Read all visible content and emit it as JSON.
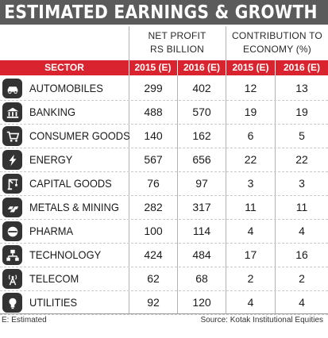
{
  "title": "ESTIMATED EARNINGS & GROWTH",
  "group_headers": {
    "net_profit": [
      "NET PROFIT",
      "RS BILLION"
    ],
    "contribution": [
      "CONTRIBUTION TO",
      "ECONOMY (%)"
    ]
  },
  "columns": {
    "sector": "SECTOR",
    "np_2015": "2015 (E)",
    "np_2016": "2016 (E)",
    "ct_2015": "2015 (E)",
    "ct_2016": "2016 (E)"
  },
  "rows": [
    {
      "sector": "AUTOMOBILES",
      "icon": "car-icon",
      "np_2015": "299",
      "np_2016": "402",
      "ct_2015": "12",
      "ct_2016": "13"
    },
    {
      "sector": "BANKING",
      "icon": "bank-icon",
      "np_2015": "488",
      "np_2016": "570",
      "ct_2015": "19",
      "ct_2016": "19"
    },
    {
      "sector": "CONSUMER GOODS",
      "icon": "shopping-cart-icon",
      "np_2015": "140",
      "np_2016": "162",
      "ct_2015": "6",
      "ct_2016": "5"
    },
    {
      "sector": "ENERGY",
      "icon": "lightning-icon",
      "np_2015": "567",
      "np_2016": "656",
      "ct_2015": "22",
      "ct_2016": "22"
    },
    {
      "sector": "CAPITAL GOODS",
      "icon": "crane-icon",
      "np_2015": "76",
      "np_2016": "97",
      "ct_2015": "3",
      "ct_2016": "3"
    },
    {
      "sector": "METALS & MINING",
      "icon": "metal-bars-icon",
      "np_2015": "282",
      "np_2016": "317",
      "ct_2015": "11",
      "ct_2016": "11"
    },
    {
      "sector": "PHARMA",
      "icon": "pill-icon",
      "np_2015": "100",
      "np_2016": "114",
      "ct_2015": "4",
      "ct_2016": "4"
    },
    {
      "sector": "TECHNOLOGY",
      "icon": "network-icon",
      "np_2015": "424",
      "np_2016": "484",
      "ct_2015": "17",
      "ct_2016": "16"
    },
    {
      "sector": "TELECOM",
      "icon": "antenna-icon",
      "np_2015": "62",
      "np_2016": "68",
      "ct_2015": "2",
      "ct_2016": "2"
    },
    {
      "sector": "UTILITIES",
      "icon": "bulb-icon",
      "np_2015": "92",
      "np_2016": "120",
      "ct_2015": "4",
      "ct_2016": "4"
    }
  ],
  "footnote": "E: Estimated",
  "source": "Source: Kotak Institutional Equities",
  "colors": {
    "header_red": "#d9232e",
    "title_bg": "#5b5b5b",
    "icon_bg": "#333333"
  }
}
